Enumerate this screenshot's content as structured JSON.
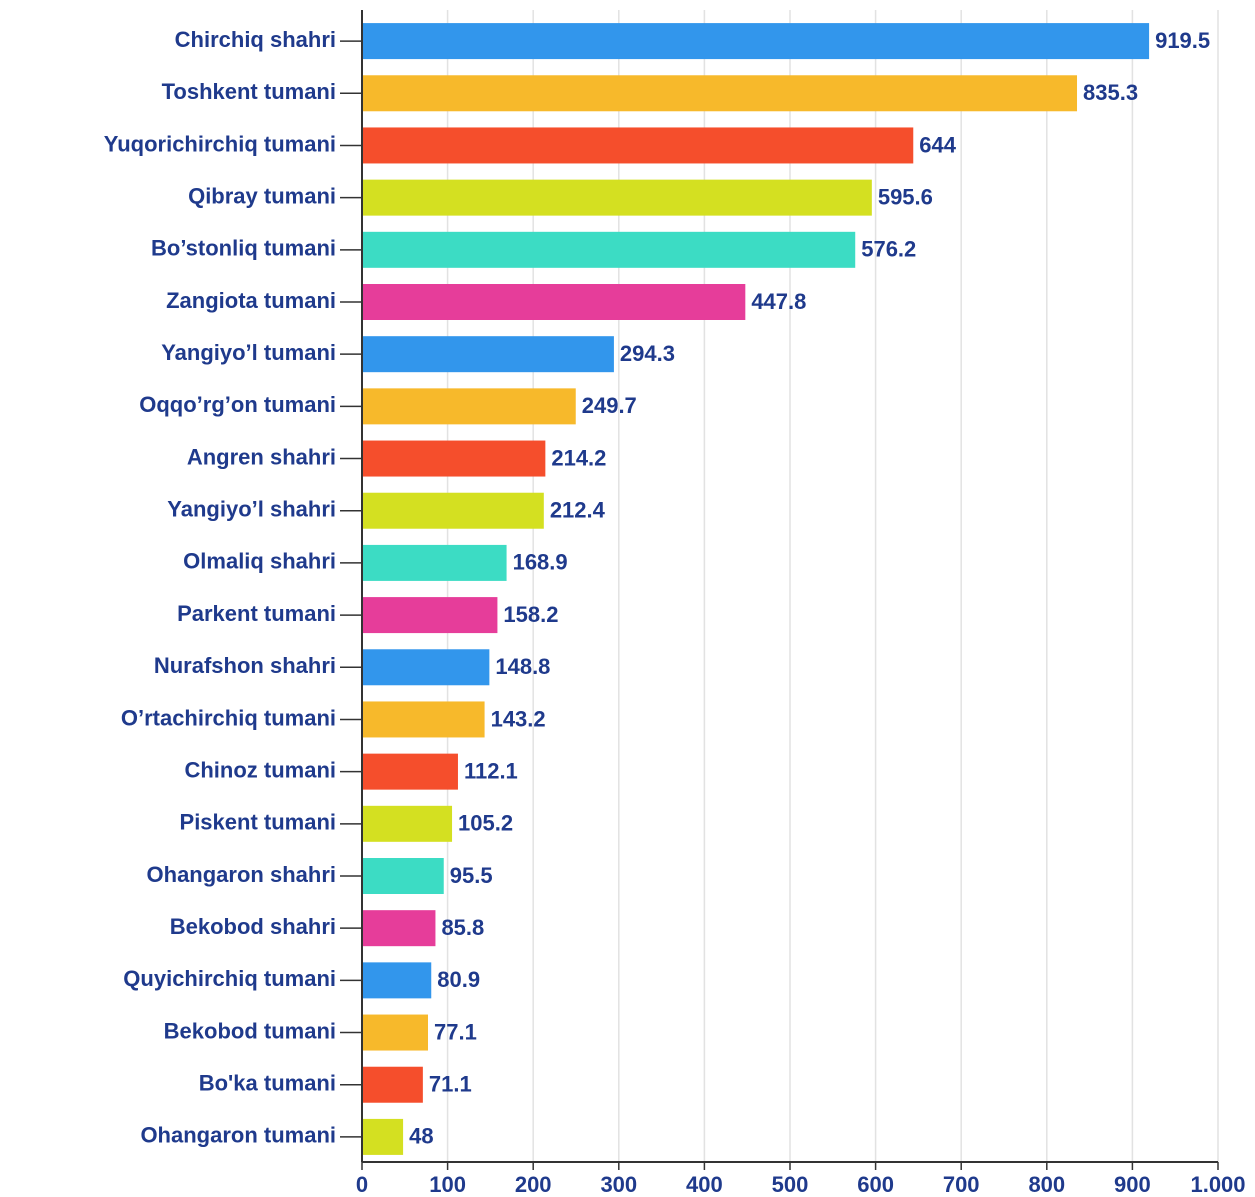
{
  "chart_data": {
    "type": "bar",
    "orientation": "horizontal",
    "categories": [
      "Chirchiq shahri",
      "Toshkent tumani",
      "Yuqorichirchiq tumani",
      "Qibray tumani",
      "Bo’stonliq tumani",
      "Zangiota tumani",
      "Yangiyo’l tumani",
      "Oqqo’rg’on tumani",
      "Angren shahri",
      "Yangiyo’l shahri",
      "Olmaliq shahri",
      "Parkent tumani",
      "Nurafshon shahri",
      "O’rtachirchiq tumani",
      "Chinoz tumani",
      "Piskent tumani",
      "Ohangaron shahri",
      "Bekobod shahri",
      "Quyichirchiq tumani",
      "Bekobod tumani",
      "Bo'ka tumani",
      "Ohangaron tumani"
    ],
    "values": [
      919.5,
      835.3,
      644,
      595.6,
      576.2,
      447.8,
      294.3,
      249.7,
      214.2,
      212.4,
      168.9,
      158.2,
      148.8,
      143.2,
      112.1,
      105.2,
      95.5,
      85.8,
      80.9,
      77.1,
      71.1,
      48
    ],
    "colors": [
      "#3296ec",
      "#f7b92b",
      "#f54e2c",
      "#d4e021",
      "#3cdcc4",
      "#e63d9a",
      "#3296ec",
      "#f7b92b",
      "#f54e2c",
      "#d4e021",
      "#3cdcc4",
      "#e63d9a",
      "#3296ec",
      "#f7b92b",
      "#f54e2c",
      "#d4e021",
      "#3cdcc4",
      "#e63d9a",
      "#3296ec",
      "#f7b92b",
      "#f54e2c",
      "#d4e021"
    ],
    "xlim": [
      0,
      1000
    ],
    "xticks": [
      0,
      100,
      200,
      300,
      400,
      500,
      600,
      700,
      800,
      900,
      {
        "value": 1000,
        "label": "1.000"
      }
    ],
    "grid": true
  }
}
